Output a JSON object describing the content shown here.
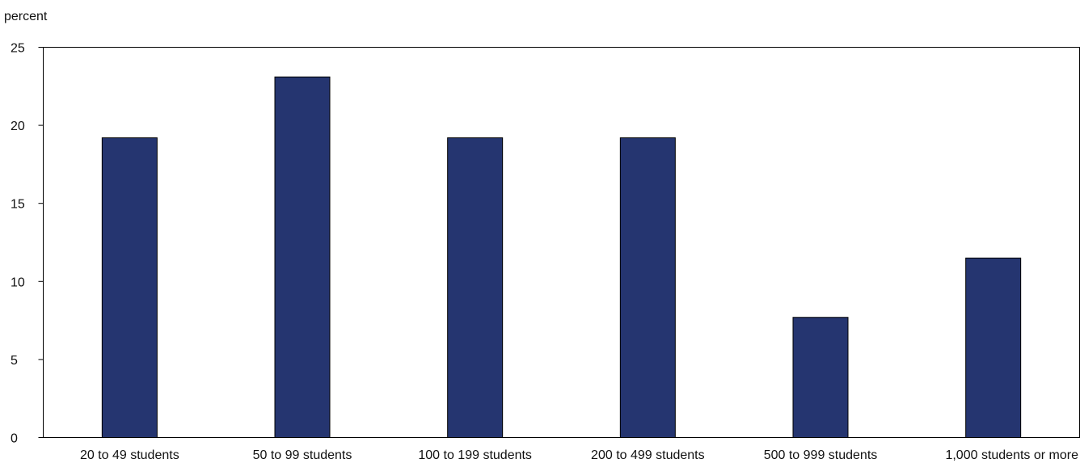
{
  "chart_data": {
    "type": "bar",
    "ylabel": "percent",
    "xlabel": "",
    "title": "",
    "ylim": [
      0,
      25
    ],
    "yticks": [
      0,
      5,
      10,
      15,
      20,
      25
    ],
    "categories": [
      "20 to 49 students",
      "50 to 99 students",
      "100 to 199 students",
      "200 to 499 students",
      "500 to 999 students",
      "1,000 students or more"
    ],
    "values": [
      19.2,
      23.1,
      19.2,
      19.2,
      7.7,
      11.5
    ],
    "bar_color": "#253570",
    "grid": false,
    "legend": "none"
  }
}
